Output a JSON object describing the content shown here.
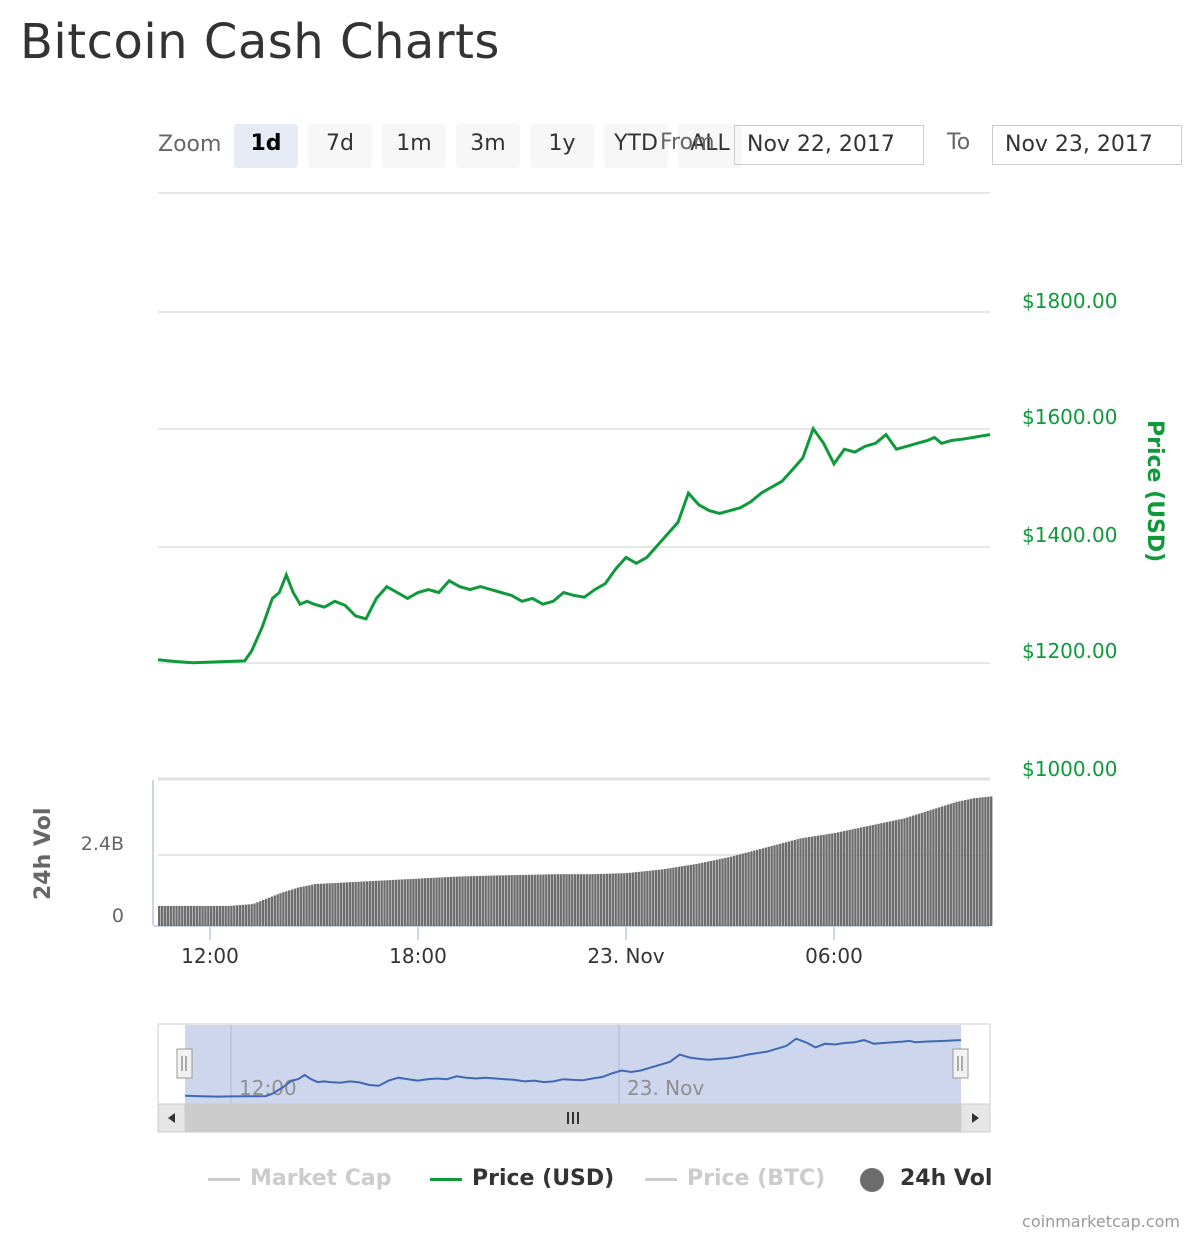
{
  "title": "Bitcoin Cash Charts",
  "zoom": {
    "label": "Zoom",
    "buttons": [
      "1d",
      "7d",
      "1m",
      "3m",
      "1y",
      "YTD",
      "ALL"
    ],
    "active": "1d"
  },
  "range": {
    "from_label": "From",
    "from_value": "Nov 22, 2017",
    "to_label": "To",
    "to_value": "Nov 23, 2017"
  },
  "colors": {
    "price": "#0e9a3a",
    "volume": "#6d6d6d",
    "navigator": "#3f68b3",
    "muted": "#cccccc"
  },
  "chart_data": {
    "type": "line",
    "price_axis": {
      "label": "Price (USD)",
      "ticks": [
        "$1800.00",
        "$1600.00",
        "$1400.00",
        "$1200.00",
        "$1000.00"
      ],
      "ylim": [
        1000,
        1800
      ]
    },
    "volume_axis": {
      "label": "24h Vol",
      "ticks": [
        "2.4B",
        "0"
      ]
    },
    "x_ticks": [
      "12:00",
      "18:00",
      "23. Nov",
      "06:00"
    ],
    "x_hours": [
      12,
      18,
      24,
      30
    ],
    "xlim_hours": [
      10.5,
      34.5
    ],
    "series": [
      {
        "name": "Price (USD)",
        "x_hours": [
          10.5,
          11.0,
          11.5,
          12.0,
          12.5,
          13.0,
          13.2,
          13.5,
          13.8,
          14.0,
          14.2,
          14.4,
          14.6,
          14.8,
          15.0,
          15.3,
          15.6,
          15.9,
          16.2,
          16.5,
          16.8,
          17.1,
          17.4,
          17.7,
          18.0,
          18.3,
          18.6,
          18.9,
          19.2,
          19.5,
          19.8,
          20.1,
          20.4,
          20.7,
          21.0,
          21.3,
          21.6,
          21.9,
          22.2,
          22.5,
          22.8,
          23.1,
          23.4,
          23.7,
          24.0,
          24.3,
          24.6,
          24.9,
          25.2,
          25.5,
          25.8,
          26.1,
          26.4,
          26.7,
          27.0,
          27.3,
          27.6,
          27.9,
          28.2,
          28.5,
          28.8,
          29.1,
          29.4,
          29.7,
          30.0,
          30.3,
          30.6,
          30.9,
          31.2,
          31.5,
          31.8,
          32.1,
          32.4,
          32.7,
          32.9,
          33.1,
          33.4,
          33.7,
          34.0,
          34.3,
          34.5
        ],
        "values": [
          1185,
          1182,
          1180,
          1181,
          1182,
          1183,
          1200,
          1240,
          1290,
          1300,
          1330,
          1300,
          1280,
          1285,
          1280,
          1275,
          1285,
          1278,
          1260,
          1255,
          1290,
          1310,
          1300,
          1290,
          1300,
          1305,
          1300,
          1320,
          1310,
          1305,
          1310,
          1305,
          1300,
          1295,
          1285,
          1290,
          1280,
          1285,
          1300,
          1295,
          1292,
          1305,
          1315,
          1340,
          1360,
          1350,
          1360,
          1380,
          1400,
          1420,
          1470,
          1450,
          1440,
          1435,
          1440,
          1445,
          1455,
          1470,
          1480,
          1490,
          1510,
          1530,
          1580,
          1555,
          1520,
          1545,
          1540,
          1550,
          1555,
          1570,
          1545,
          1550,
          1555,
          1560,
          1565,
          1555,
          1560,
          1562,
          1565,
          1568,
          1570
        ]
      },
      {
        "name": "24h Vol",
        "x_hours": [
          10.5,
          11.5,
          12.5,
          13.2,
          13.6,
          14.0,
          14.5,
          15.0,
          16.0,
          17.0,
          18.0,
          19.0,
          20.0,
          21.0,
          22.0,
          23.0,
          24.0,
          25.0,
          26.0,
          27.0,
          28.0,
          29.0,
          30.0,
          31.0,
          32.0,
          33.0,
          33.5,
          34.0,
          34.5
        ],
        "values_billion": [
          0.55,
          0.55,
          0.55,
          0.6,
          0.75,
          0.9,
          1.05,
          1.15,
          1.2,
          1.25,
          1.3,
          1.35,
          1.38,
          1.4,
          1.42,
          1.42,
          1.45,
          1.55,
          1.7,
          1.9,
          2.15,
          2.4,
          2.55,
          2.75,
          2.95,
          3.25,
          3.4,
          3.5,
          3.55
        ]
      }
    ],
    "volume_ylim_billion": [
      0,
      4.0
    ],
    "navigator": {
      "ticks": [
        "12:00",
        "23. Nov"
      ]
    }
  },
  "legend": [
    "Market Cap",
    "Price (USD)",
    "Price (BTC)",
    "24h Vol"
  ],
  "credit": "coinmarketcap.com"
}
